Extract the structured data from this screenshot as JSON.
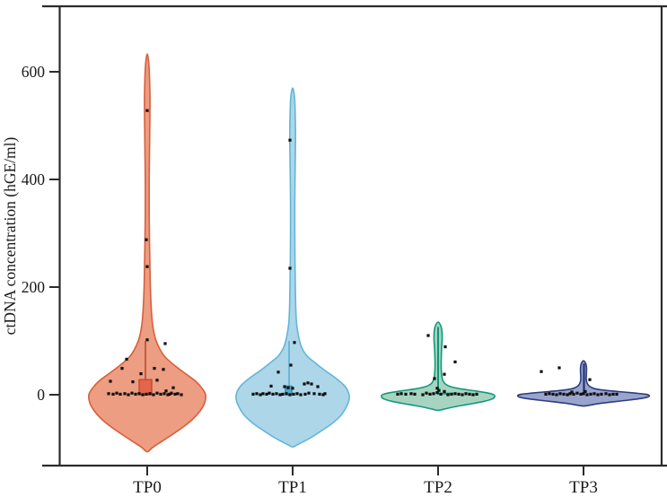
{
  "figure": {
    "background": "#ffffff",
    "axis_color": "#2b2b2b"
  },
  "chart_data": {
    "type": "violin",
    "title": "",
    "xlabel": "",
    "ylabel": "ctDNA concentration (hGE/ml)",
    "categories": [
      "TP0",
      "TP1",
      "TP2",
      "TP3"
    ],
    "ylim": [
      -130,
      720
    ],
    "y_ticks": [
      0,
      200,
      400,
      600
    ],
    "y_tick_labels": [
      "0",
      "200",
      "400",
      "600"
    ],
    "grid": false,
    "legend": "none",
    "point_color": "#0e0e0e",
    "series": [
      {
        "name": "TP0",
        "fill": "#EC9D82",
        "stroke": "#D95F3B",
        "max_value": 633,
        "min_tail": -106,
        "profile": [
          [
            633,
            0
          ],
          [
            610,
            2
          ],
          [
            560,
            3
          ],
          [
            520,
            3
          ],
          [
            460,
            2.6
          ],
          [
            400,
            2.2
          ],
          [
            340,
            2.2
          ],
          [
            290,
            2.5
          ],
          [
            240,
            3
          ],
          [
            200,
            3.5
          ],
          [
            160,
            4.5
          ],
          [
            130,
            6
          ],
          [
            105,
            9
          ],
          [
            85,
            14
          ],
          [
            70,
            20
          ],
          [
            55,
            30
          ],
          [
            40,
            42
          ],
          [
            25,
            54
          ],
          [
            12,
            61
          ],
          [
            0,
            65
          ],
          [
            -15,
            64
          ],
          [
            -30,
            59
          ],
          [
            -45,
            51
          ],
          [
            -60,
            40
          ],
          [
            -75,
            27
          ],
          [
            -88,
            15
          ],
          [
            -98,
            6
          ],
          [
            -106,
            0
          ]
        ],
        "inner": {
          "box": {
            "v": [
              0,
              28
            ],
            "off": [
              -9,
              5
            ],
            "fill": "#E3654B",
            "stroke": "#C04A2E"
          },
          "whisker": {
            "v": [
              28,
              100
            ],
            "off": -2,
            "color": "#C04A2E",
            "width": 1.6
          }
        },
        "points": [
          [
            0,
            528
          ],
          [
            -1,
            288
          ],
          [
            0,
            238
          ],
          [
            0,
            102
          ],
          [
            20,
            95
          ],
          [
            -23,
            66
          ],
          [
            -28,
            49
          ],
          [
            8,
            49
          ],
          [
            18,
            47
          ],
          [
            -7,
            39
          ],
          [
            11,
            27
          ],
          [
            -41,
            25
          ],
          [
            -16,
            24
          ],
          [
            29,
            13
          ],
          [
            21,
            7
          ],
          [
            -43,
            2
          ],
          [
            -38,
            1
          ],
          [
            -34,
            3
          ],
          [
            -30,
            1
          ],
          [
            -25,
            2
          ],
          [
            -21,
            0
          ],
          [
            -17,
            3
          ],
          [
            -13,
            1
          ],
          [
            -9,
            2
          ],
          [
            -5,
            0
          ],
          [
            -1,
            1
          ],
          [
            3,
            2
          ],
          [
            7,
            0
          ],
          [
            11,
            3
          ],
          [
            15,
            1
          ],
          [
            19,
            2
          ],
          [
            23,
            0
          ],
          [
            27,
            3
          ],
          [
            31,
            1
          ],
          [
            34,
            2
          ],
          [
            38,
            0
          ],
          [
            25,
            1
          ]
        ]
      },
      {
        "name": "TP1",
        "fill": "#ADD6E8",
        "stroke": "#62B6D8",
        "max_value": 570,
        "min_tail": -97,
        "profile": [
          [
            570,
            0
          ],
          [
            550,
            2.2
          ],
          [
            510,
            3
          ],
          [
            470,
            3.2
          ],
          [
            420,
            2.8
          ],
          [
            360,
            2.4
          ],
          [
            300,
            2.4
          ],
          [
            250,
            2.6
          ],
          [
            200,
            3
          ],
          [
            160,
            3.5
          ],
          [
            130,
            4.5
          ],
          [
            105,
            7
          ],
          [
            88,
            10
          ],
          [
            72,
            16
          ],
          [
            58,
            26
          ],
          [
            45,
            36
          ],
          [
            32,
            47
          ],
          [
            18,
            57
          ],
          [
            5,
            62
          ],
          [
            -8,
            63
          ],
          [
            -22,
            60
          ],
          [
            -38,
            54
          ],
          [
            -52,
            45
          ],
          [
            -66,
            33
          ],
          [
            -80,
            20
          ],
          [
            -88,
            11
          ],
          [
            -94,
            4
          ],
          [
            -97,
            0
          ]
        ],
        "inner": {
          "box": {
            "v": [
              0,
              16
            ],
            "off": [
              -8,
              -1
            ],
            "fill": "#53A9CD",
            "stroke": "#3587AB"
          },
          "whisker": {
            "v": [
              16,
              100
            ],
            "off": -4,
            "color": "#53A9CD",
            "width": 1.4
          }
        },
        "points": [
          [
            -3,
            473
          ],
          [
            -3,
            235
          ],
          [
            2,
            97
          ],
          [
            -2,
            55
          ],
          [
            -16,
            42
          ],
          [
            13,
            20
          ],
          [
            17,
            22
          ],
          [
            21,
            20
          ],
          [
            28,
            15
          ],
          [
            -24,
            16
          ],
          [
            -9,
            15
          ],
          [
            -5,
            13
          ],
          [
            0,
            12
          ],
          [
            -44,
            1
          ],
          [
            -40,
            2
          ],
          [
            -36,
            0
          ],
          [
            -33,
            2
          ],
          [
            -29,
            1
          ],
          [
            -26,
            3
          ],
          [
            -22,
            1
          ],
          [
            -18,
            2
          ],
          [
            -14,
            0
          ],
          [
            -11,
            1
          ],
          [
            -7,
            2
          ],
          [
            -3,
            0
          ],
          [
            1,
            1
          ],
          [
            5,
            2
          ],
          [
            9,
            0
          ],
          [
            14,
            1
          ],
          [
            18,
            3
          ],
          [
            24,
            2
          ],
          [
            30,
            1
          ],
          [
            34,
            0
          ],
          [
            36,
            2
          ]
        ]
      },
      {
        "name": "TP2",
        "fill": "#A6D4C0",
        "stroke": "#13997C",
        "max_value": 135,
        "min_tail": -29,
        "profile": [
          [
            135,
            0
          ],
          [
            130,
            2.5
          ],
          [
            122,
            4
          ],
          [
            112,
            4.5
          ],
          [
            100,
            4.5
          ],
          [
            88,
            4
          ],
          [
            72,
            3.6
          ],
          [
            58,
            3.4
          ],
          [
            45,
            3.6
          ],
          [
            34,
            4.2
          ],
          [
            26,
            5.5
          ],
          [
            20,
            8
          ],
          [
            15,
            14
          ],
          [
            11,
            25
          ],
          [
            7,
            42
          ],
          [
            3,
            56
          ],
          [
            0,
            62
          ],
          [
            -4,
            63
          ],
          [
            -8,
            60
          ],
          [
            -12,
            52
          ],
          [
            -16,
            40
          ],
          [
            -20,
            26
          ],
          [
            -24,
            14
          ],
          [
            -27,
            6
          ],
          [
            -29,
            0
          ]
        ],
        "inner": {
          "vline": {
            "v": [
              0,
              126
            ],
            "off": 0,
            "color": "#0E9678",
            "width": 2
          },
          "hline": {
            "v": 2,
            "off": [
              0,
              17
            ],
            "color": "#0E9678",
            "width": 2
          }
        },
        "points": [
          [
            -11,
            110
          ],
          [
            8,
            89
          ],
          [
            19,
            61
          ],
          [
            7,
            38
          ],
          [
            -4,
            30
          ],
          [
            -1,
            12
          ],
          [
            1,
            8
          ],
          [
            -45,
            1
          ],
          [
            -41,
            2
          ],
          [
            -36,
            1
          ],
          [
            -30,
            2
          ],
          [
            -26,
            1
          ],
          [
            -17,
            0
          ],
          [
            -13,
            3
          ],
          [
            -9,
            1
          ],
          [
            -5,
            2
          ],
          [
            -1,
            4
          ],
          [
            3,
            1
          ],
          [
            7,
            6
          ],
          [
            11,
            0
          ],
          [
            15,
            1
          ],
          [
            19,
            2
          ],
          [
            23,
            1
          ],
          [
            27,
            0
          ],
          [
            31,
            2
          ],
          [
            35,
            1
          ],
          [
            39,
            0
          ],
          [
            43,
            1
          ]
        ]
      },
      {
        "name": "TP3",
        "fill": "#9AA5CE",
        "stroke": "#2E3B7D",
        "max_value": 63,
        "min_tail": -21,
        "profile": [
          [
            63,
            0
          ],
          [
            59,
            2.2
          ],
          [
            53,
            3.2
          ],
          [
            46,
            3.4
          ],
          [
            38,
            3.2
          ],
          [
            31,
            3
          ],
          [
            25,
            3.4
          ],
          [
            20,
            4.5
          ],
          [
            16,
            6.5
          ],
          [
            12,
            11
          ],
          [
            9,
            20
          ],
          [
            6,
            38
          ],
          [
            3,
            58
          ],
          [
            1,
            69
          ],
          [
            -1,
            73
          ],
          [
            -4,
            72
          ],
          [
            -7,
            64
          ],
          [
            -10,
            50
          ],
          [
            -13,
            34
          ],
          [
            -16,
            19
          ],
          [
            -19,
            8
          ],
          [
            -21,
            0
          ]
        ],
        "inner": {
          "vline": {
            "v": [
              0,
              58
            ],
            "off": 0.5,
            "color": "#2C3A7C",
            "width": 2.4
          }
        },
        "points": [
          [
            -47,
            43
          ],
          [
            -27,
            50
          ],
          [
            7,
            28
          ],
          [
            -13,
            5
          ],
          [
            2,
            6
          ],
          [
            -42,
            1
          ],
          [
            -38,
            2
          ],
          [
            -34,
            1
          ],
          [
            -30,
            0
          ],
          [
            -26,
            2
          ],
          [
            -22,
            1
          ],
          [
            -18,
            0
          ],
          [
            -15,
            2
          ],
          [
            -11,
            1
          ],
          [
            -7,
            3
          ],
          [
            -3,
            1
          ],
          [
            0,
            2
          ],
          [
            4,
            0
          ],
          [
            8,
            1
          ],
          [
            12,
            2
          ],
          [
            16,
            0
          ],
          [
            20,
            1
          ],
          [
            25,
            2
          ],
          [
            29,
            0
          ],
          [
            33,
            1
          ],
          [
            37,
            1
          ]
        ]
      }
    ]
  }
}
